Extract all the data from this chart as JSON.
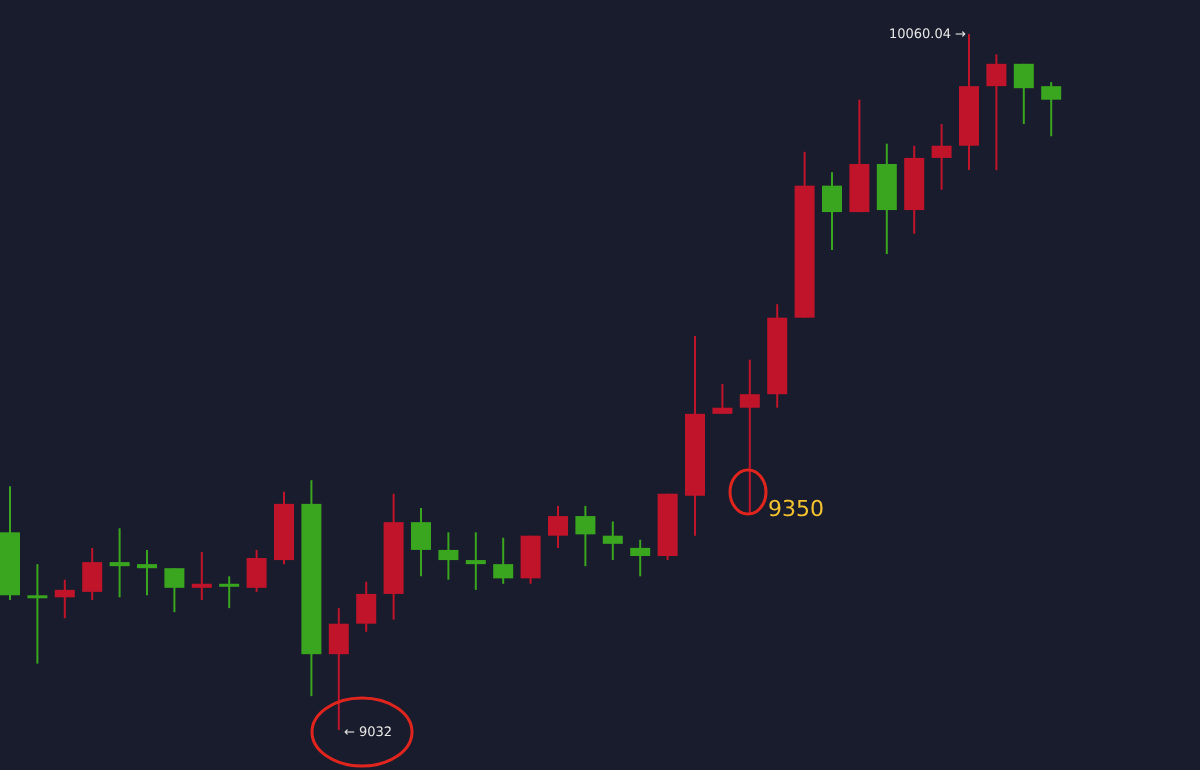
{
  "chart_data": {
    "type": "candlestick",
    "categories": [
      null,
      null,
      null,
      null,
      null,
      null,
      null,
      null,
      null,
      null,
      null,
      null,
      null,
      null,
      null,
      null,
      null,
      null,
      null,
      null,
      null,
      null,
      null,
      null,
      null,
      null,
      null,
      null,
      null,
      null,
      null,
      null,
      null,
      null,
      null,
      null,
      null,
      null,
      null
    ],
    "ohlc": [
      [
        9324,
        9392,
        9224,
        9231
      ],
      [
        9231,
        9277,
        9130,
        9228
      ],
      [
        9228,
        9254,
        9197,
        9239
      ],
      [
        9236,
        9301,
        9224,
        9280
      ],
      [
        9280,
        9330,
        9228,
        9274
      ],
      [
        9277,
        9298,
        9231,
        9271
      ],
      [
        9271,
        9271,
        9206,
        9242
      ],
      [
        9242,
        9295,
        9224,
        9248
      ],
      [
        9248,
        9259,
        9212,
        9245
      ],
      [
        9242,
        9298,
        9236,
        9286
      ],
      [
        9283,
        9384,
        9277,
        9366
      ],
      [
        9366,
        9401,
        9082,
        9144
      ],
      [
        9144,
        9212,
        9032,
        9189
      ],
      [
        9189,
        9251,
        9177,
        9233
      ],
      [
        9233,
        9381,
        9195,
        9339
      ],
      [
        9339,
        9360,
        9259,
        9298
      ],
      [
        9298,
        9324,
        9254,
        9283
      ],
      [
        9283,
        9324,
        9239,
        9277
      ],
      [
        9277,
        9316,
        9248,
        9256
      ],
      [
        9256,
        9319,
        9248,
        9319
      ],
      [
        9319,
        9363,
        9301,
        9348
      ],
      [
        9348,
        9363,
        9274,
        9321
      ],
      [
        9319,
        9340,
        9283,
        9307
      ],
      [
        9301,
        9313,
        9259,
        9289
      ],
      [
        9289,
        9381,
        9283,
        9381
      ],
      [
        9378,
        9614,
        9319,
        9499
      ],
      [
        9499,
        9543,
        9499,
        9508
      ],
      [
        9508,
        9579,
        9350,
        9528
      ],
      [
        9528,
        9661,
        9508,
        9641
      ],
      [
        9641,
        9886,
        9641,
        9836
      ],
      [
        9836,
        9856,
        9741,
        9797
      ],
      [
        9797,
        9963,
        9797,
        9868
      ],
      [
        9868,
        9898,
        9735,
        9800
      ],
      [
        9800,
        9895,
        9765,
        9877
      ],
      [
        9877,
        9927,
        9830,
        9895
      ],
      [
        9895,
        10060.04,
        9859,
        9983
      ],
      [
        9983,
        10030,
        9859,
        10016
      ],
      [
        10016,
        10016,
        9927,
        9980
      ],
      [
        9983,
        9989,
        9909,
        9963
      ]
    ],
    "colors": [
      "#3aa620",
      "#3aa620",
      "#c0142a",
      "#c0142a",
      "#3aa620",
      "#3aa620",
      "#3aa620",
      "#c0142a",
      "#3aa620",
      "#c0142a",
      "#c0142a",
      "#3aa620",
      "#c0142a",
      "#c0142a",
      "#c0142a",
      "#3aa620",
      "#3aa620",
      "#3aa620",
      "#3aa620",
      "#c0142a",
      "#c0142a",
      "#3aa620",
      "#3aa620",
      "#3aa620",
      "#c0142a",
      "#c0142a",
      "#c0142a",
      "#c0142a",
      "#c0142a",
      "#c0142a",
      "#3aa620",
      "#c0142a",
      "#3aa620",
      "#c0142a",
      "#c0142a",
      "#c0142a",
      "#c0142a",
      "#3aa620",
      "#3aa620"
    ],
    "annotations": [
      "10060.04 →",
      "← 9032",
      "9350"
    ]
  }
}
